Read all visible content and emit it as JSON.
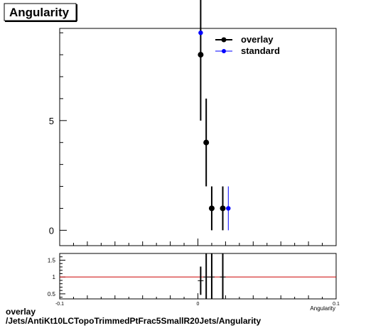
{
  "title": "Angularity",
  "footer": {
    "line1": "overlay",
    "line2": "/Jets/AntiKt10LCTopoTrimmedPtFrac5SmallR20Jets/Angularity"
  },
  "colors": {
    "overlay": "#000000",
    "standard": "#0000ff",
    "ratio_line": "#cc0000"
  },
  "chart_data": [
    {
      "type": "scatter",
      "xlabel": "Angularity",
      "xlim": [
        -0.1,
        0.1
      ],
      "ylim": [
        -0.7,
        9.2
      ],
      "yticks": [
        0,
        5
      ],
      "legend_position": "top-right",
      "series": [
        {
          "name": "overlay",
          "color": "#000000",
          "points": [
            {
              "x": 0.002,
              "y": 8,
              "err": 3
            },
            {
              "x": 0.006,
              "y": 4,
              "err": 2
            },
            {
              "x": 0.01,
              "y": 1,
              "err": 1
            },
            {
              "x": 0.018,
              "y": 1,
              "err": 1
            }
          ]
        },
        {
          "name": "standard",
          "color": "#0000ff",
          "points": [
            {
              "x": 0.002,
              "y": 9,
              "err": 0
            },
            {
              "x": 0.022,
              "y": 1,
              "err": 1
            }
          ]
        }
      ]
    },
    {
      "type": "scatter",
      "xlabel": "Angularity",
      "xlim": [
        -0.1,
        0.1
      ],
      "ylim": [
        0.35,
        1.7
      ],
      "yticks": [
        0.5,
        1,
        1.5
      ],
      "xticks": [
        -0.1,
        0,
        0.1
      ],
      "reference_line": 1,
      "points": [
        {
          "x": 0.002,
          "y": 0.89,
          "err": 0.42
        },
        {
          "x": 0.006,
          "y": 1.0,
          "err": 1.0
        },
        {
          "x": 0.01,
          "y": 1.0,
          "err": 1.0
        },
        {
          "x": 0.018,
          "y": 1.0,
          "err": 1.0
        }
      ]
    }
  ]
}
